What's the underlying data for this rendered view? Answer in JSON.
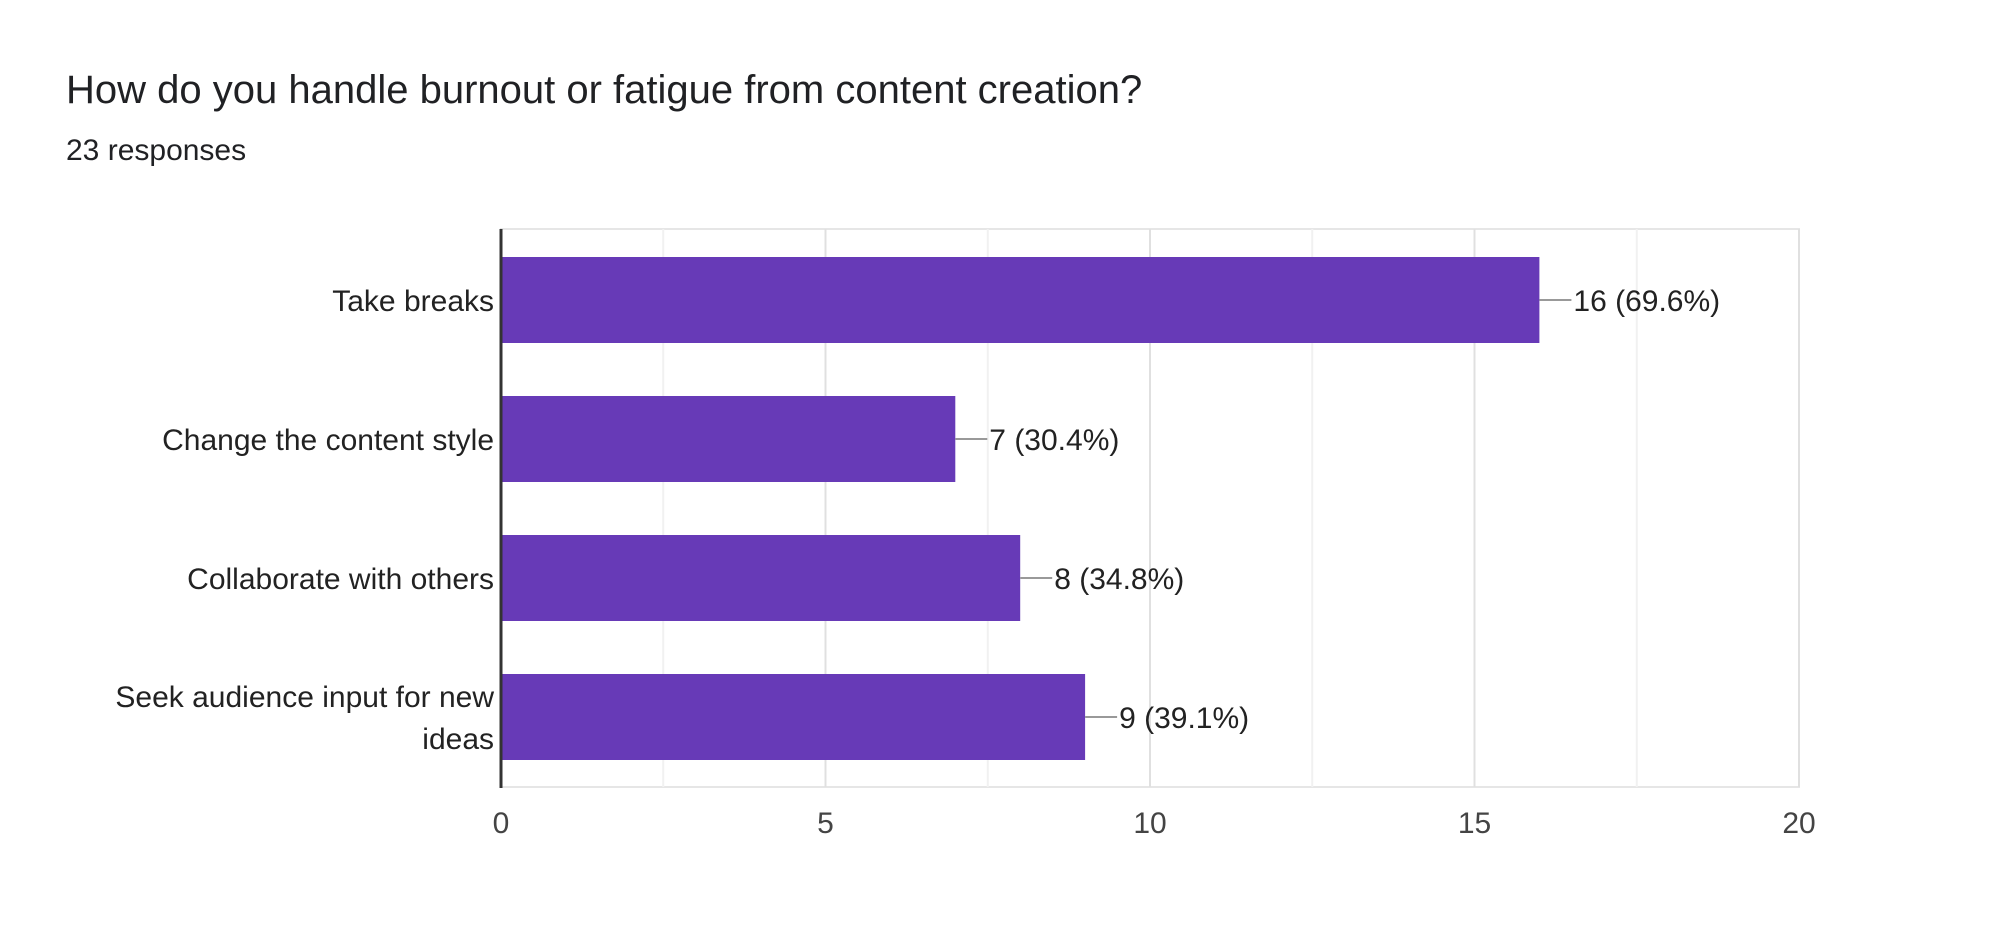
{
  "header": {
    "title": "How do you handle burnout or fatigue from content creation?",
    "subtitle": "23 responses"
  },
  "chart_data": {
    "type": "bar",
    "orientation": "horizontal",
    "title": "How do you handle burnout or fatigue from content creation?",
    "categories": [
      "Take breaks",
      "Change the content style",
      "Collaborate with others",
      "Seek audience input for new ideas"
    ],
    "category_lines": [
      [
        "Take breaks"
      ],
      [
        "Change the content style"
      ],
      [
        "Collaborate with others"
      ],
      [
        "Seek audience input for new",
        "ideas"
      ]
    ],
    "values": [
      16,
      7,
      8,
      9
    ],
    "data_labels": [
      "16 (69.6%)",
      "7 (30.4%)",
      "8 (34.8%)",
      "9 (39.1%)"
    ],
    "xlim": [
      0,
      20
    ],
    "xticks": [
      0,
      5,
      10,
      15,
      20
    ],
    "grid": true,
    "bar_color": "#673ab7",
    "xlabel": "",
    "ylabel": ""
  }
}
